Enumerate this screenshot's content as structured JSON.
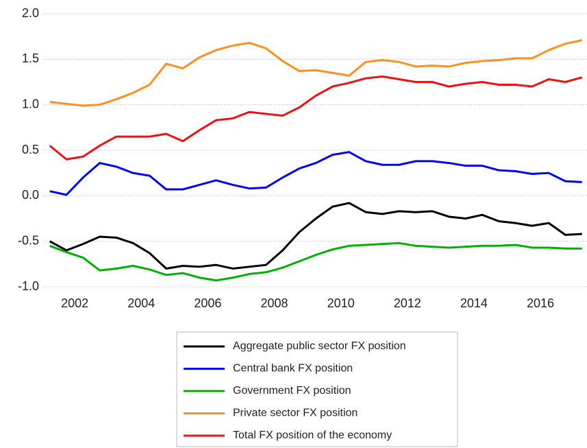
{
  "chart_data": {
    "type": "line",
    "x": [
      2001.25,
      2001.75,
      2002.25,
      2002.75,
      2003.25,
      2003.75,
      2004.25,
      2004.75,
      2005.25,
      2005.75,
      2006.25,
      2006.75,
      2007.25,
      2007.75,
      2008.25,
      2008.75,
      2009.25,
      2009.75,
      2010.25,
      2010.75,
      2011.25,
      2011.75,
      2012.25,
      2012.75,
      2013.25,
      2013.75,
      2014.25,
      2014.75,
      2015.25,
      2015.75,
      2016.25,
      2016.75,
      2017.25
    ],
    "xlim": [
      2001.05,
      2017.4
    ],
    "xticks": [
      2002,
      2004,
      2006,
      2008,
      2010,
      2012,
      2014,
      2016
    ],
    "ylim": [
      -1.0,
      2.0
    ],
    "yticks": [
      {
        "value": 2.0,
        "label": "2.0"
      },
      {
        "value": 1.5,
        "label": "1.5"
      },
      {
        "value": 1.0,
        "label": "1.0"
      },
      {
        "value": 0.5,
        "label": "0.5"
      },
      {
        "value": 0.0,
        "label": "0.0"
      },
      {
        "value": -0.5,
        "label": "-0.5"
      },
      {
        "value": -1.0,
        "label": "-1.0"
      }
    ],
    "grid": true,
    "series": [
      {
        "name": "Aggregate public sector FX position",
        "color": "#000000",
        "values": [
          -0.5,
          -0.6,
          -0.53,
          -0.45,
          -0.46,
          -0.52,
          -0.63,
          -0.8,
          -0.77,
          -0.78,
          -0.76,
          -0.8,
          -0.78,
          -0.76,
          -0.6,
          -0.4,
          -0.25,
          -0.12,
          -0.08,
          -0.18,
          -0.2,
          -0.17,
          -0.18,
          -0.17,
          -0.23,
          -0.25,
          -0.21,
          -0.28,
          -0.3,
          -0.33,
          -0.3,
          -0.43,
          -0.42
        ]
      },
      {
        "name": "Central bank FX position",
        "color": "#0000ff",
        "values": [
          0.05,
          0.01,
          0.2,
          0.36,
          0.32,
          0.25,
          0.22,
          0.07,
          0.07,
          0.12,
          0.17,
          0.12,
          0.08,
          0.09,
          0.2,
          0.3,
          0.36,
          0.45,
          0.48,
          0.38,
          0.34,
          0.34,
          0.38,
          0.38,
          0.36,
          0.33,
          0.33,
          0.28,
          0.27,
          0.24,
          0.25,
          0.16,
          0.15
        ]
      },
      {
        "name": "Government FX position",
        "color": "#00b000",
        "values": [
          -0.55,
          -0.62,
          -0.68,
          -0.82,
          -0.8,
          -0.77,
          -0.81,
          -0.87,
          -0.85,
          -0.9,
          -0.93,
          -0.9,
          -0.86,
          -0.84,
          -0.79,
          -0.72,
          -0.65,
          -0.59,
          -0.55,
          -0.54,
          -0.53,
          -0.52,
          -0.55,
          -0.56,
          -0.57,
          -0.56,
          -0.55,
          -0.55,
          -0.54,
          -0.57,
          -0.57,
          -0.58,
          -0.58
        ]
      },
      {
        "name": "Private sector FX position",
        "color": "#ff9020",
        "values": [
          1.03,
          1.01,
          0.99,
          1.0,
          1.06,
          1.13,
          1.22,
          1.45,
          1.4,
          1.52,
          1.6,
          1.65,
          1.68,
          1.62,
          1.48,
          1.37,
          1.38,
          1.35,
          1.32,
          1.47,
          1.49,
          1.47,
          1.42,
          1.43,
          1.42,
          1.46,
          1.48,
          1.49,
          1.51,
          1.51,
          1.6,
          1.67,
          1.71
        ]
      },
      {
        "name": "Total FX position of the economy",
        "color": "#ee1111",
        "values": [
          0.55,
          0.4,
          0.43,
          0.55,
          0.65,
          0.65,
          0.65,
          0.68,
          0.6,
          0.72,
          0.83,
          0.85,
          0.92,
          0.9,
          0.88,
          0.97,
          1.1,
          1.2,
          1.24,
          1.29,
          1.31,
          1.28,
          1.25,
          1.25,
          1.2,
          1.23,
          1.25,
          1.22,
          1.22,
          1.2,
          1.28,
          1.25,
          1.3
        ]
      }
    ]
  }
}
